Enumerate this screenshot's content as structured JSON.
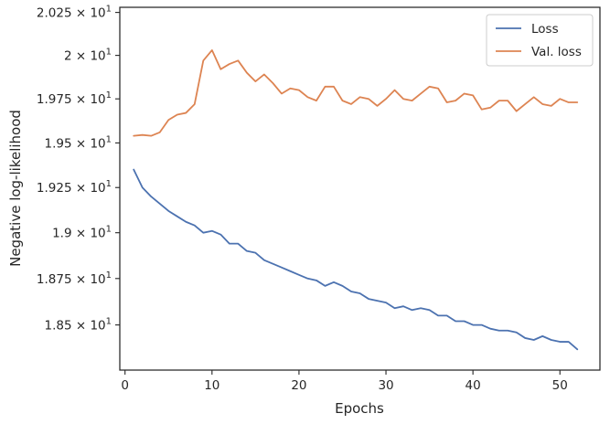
{
  "chart_data": {
    "type": "line",
    "xlabel": "Epochs",
    "ylabel": "Negative log-likelihood",
    "xlim": [
      -0.6,
      54.6
    ],
    "ylim": [
      18.26,
      20.28
    ],
    "log_y": true,
    "grid": false,
    "legend_position": "top-right",
    "x_ticks": [
      {
        "value": 0,
        "label": "0"
      },
      {
        "value": 10,
        "label": "10"
      },
      {
        "value": 20,
        "label": "20"
      },
      {
        "value": 30,
        "label": "30"
      },
      {
        "value": 40,
        "label": "40"
      },
      {
        "value": 50,
        "label": "50"
      }
    ],
    "y_ticks": [
      {
        "value": 18.5,
        "mantissa": "1.85",
        "exponent": "1"
      },
      {
        "value": 18.75,
        "mantissa": "1.875",
        "exponent": "1"
      },
      {
        "value": 19.0,
        "mantissa": "1.9",
        "exponent": "1"
      },
      {
        "value": 19.25,
        "mantissa": "1.925",
        "exponent": "1"
      },
      {
        "value": 19.5,
        "mantissa": "1.95",
        "exponent": "1"
      },
      {
        "value": 19.75,
        "mantissa": "1.975",
        "exponent": "1"
      },
      {
        "value": 20.0,
        "mantissa": "2",
        "exponent": "1"
      },
      {
        "value": 20.25,
        "mantissa": "2.025",
        "exponent": "1"
      }
    ],
    "x": [
      1,
      2,
      3,
      4,
      5,
      6,
      7,
      8,
      9,
      10,
      11,
      12,
      13,
      14,
      15,
      16,
      17,
      18,
      19,
      20,
      21,
      22,
      23,
      24,
      25,
      26,
      27,
      28,
      29,
      30,
      31,
      32,
      33,
      34,
      35,
      36,
      37,
      38,
      39,
      40,
      41,
      42,
      43,
      44,
      45,
      46,
      47,
      48,
      49,
      50,
      51,
      52
    ],
    "series": [
      {
        "name": "Loss",
        "color": "#4c72b0",
        "values": [
          19.35,
          19.25,
          19.2,
          19.16,
          19.12,
          19.09,
          19.06,
          19.04,
          19.0,
          19.01,
          18.99,
          18.94,
          18.94,
          18.9,
          18.89,
          18.85,
          18.83,
          18.81,
          18.79,
          18.77,
          18.75,
          18.74,
          18.71,
          18.73,
          18.71,
          18.68,
          18.67,
          18.64,
          18.63,
          18.62,
          18.59,
          18.6,
          18.58,
          18.59,
          18.58,
          18.55,
          18.55,
          18.52,
          18.52,
          18.5,
          18.5,
          18.48,
          18.47,
          18.47,
          18.46,
          18.43,
          18.42,
          18.44,
          18.42,
          18.41,
          18.41,
          18.37
        ]
      },
      {
        "name": "Val. loss",
        "color": "#dd8452",
        "values": [
          19.54,
          19.545,
          19.54,
          19.56,
          19.63,
          19.66,
          19.67,
          19.72,
          19.97,
          20.03,
          19.92,
          19.95,
          19.97,
          19.9,
          19.85,
          19.89,
          19.84,
          19.78,
          19.81,
          19.8,
          19.76,
          19.74,
          19.82,
          19.82,
          19.74,
          19.72,
          19.76,
          19.75,
          19.71,
          19.75,
          19.8,
          19.75,
          19.74,
          19.78,
          19.82,
          19.81,
          19.73,
          19.74,
          19.78,
          19.77,
          19.69,
          19.7,
          19.74,
          19.74,
          19.68,
          19.72,
          19.76,
          19.72,
          19.71,
          19.75,
          19.73,
          19.73
        ]
      }
    ]
  }
}
